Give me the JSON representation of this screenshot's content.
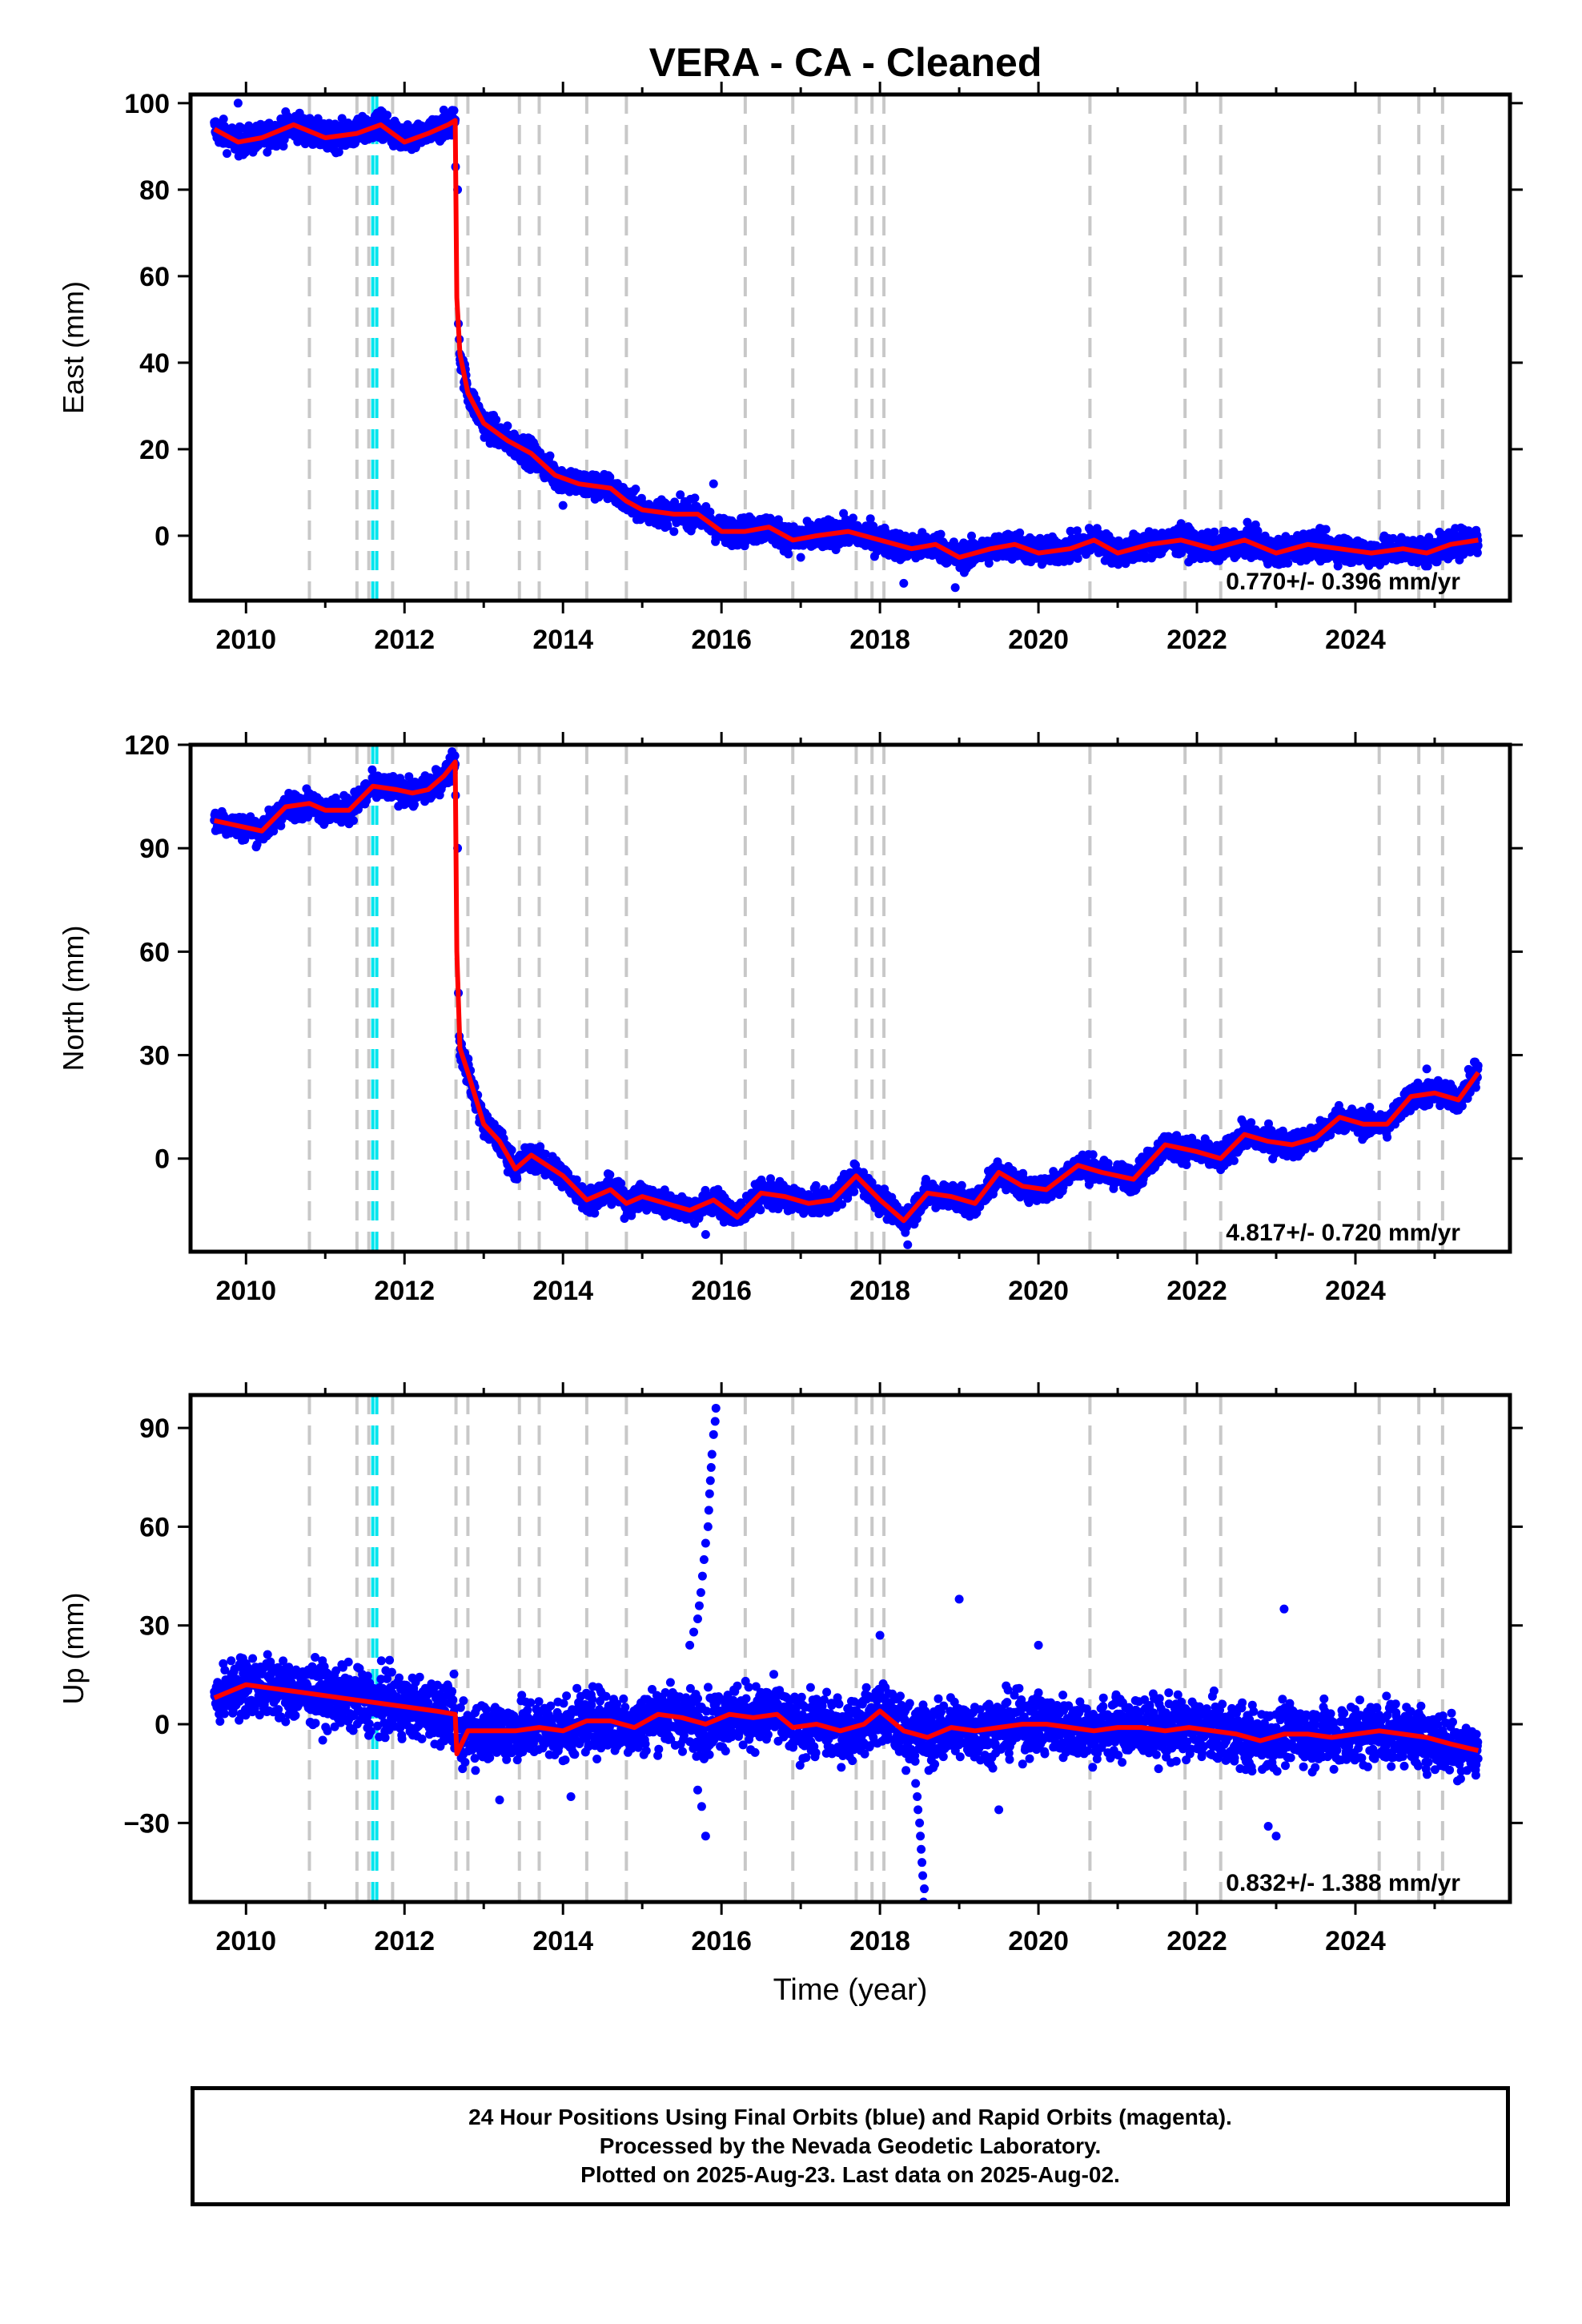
{
  "title": "VERA  - CA - Cleaned",
  "colors": {
    "points": "#0000ff",
    "model": "#ff0000",
    "event_line": "#c8c8c8",
    "equipment_line": "#00e5ee",
    "frame": "#000000"
  },
  "footer": {
    "line1": "24 Hour Positions Using Final Orbits (blue) and Rapid Orbits (magenta).",
    "line2": "Processed by the Nevada Geodetic Laboratory.",
    "line3": "Plotted on 2025-Aug-23. Last data on 2025-Aug-02."
  },
  "chart_data": [
    {
      "type": "scatter",
      "name": "east",
      "ylabel": "East (mm)",
      "xlabel": "",
      "xlim": [
        2009.3,
        2025.95
      ],
      "ylim": [
        -15,
        102
      ],
      "xticks": [
        2010,
        2012,
        2014,
        2016,
        2018,
        2020,
        2022,
        2024
      ],
      "yticks": [
        0,
        20,
        40,
        60,
        80,
        100
      ],
      "rate_label": "0.770+/- 0.396 mm/yr",
      "noise": 2.2,
      "model": [
        [
          2009.6,
          94
        ],
        [
          2009.9,
          91
        ],
        [
          2010.2,
          92
        ],
        [
          2010.6,
          95
        ],
        [
          2011.0,
          92
        ],
        [
          2011.4,
          93
        ],
        [
          2011.7,
          95
        ],
        [
          2012.0,
          91
        ],
        [
          2012.3,
          93
        ],
        [
          2012.55,
          95
        ],
        [
          2012.64,
          96
        ],
        [
          2012.66,
          55
        ],
        [
          2012.7,
          42
        ],
        [
          2012.8,
          33
        ],
        [
          2013.0,
          26
        ],
        [
          2013.3,
          22
        ],
        [
          2013.6,
          19
        ],
        [
          2013.9,
          14
        ],
        [
          2014.2,
          12
        ],
        [
          2014.6,
          11
        ],
        [
          2014.8,
          8
        ],
        [
          2015.0,
          6
        ],
        [
          2015.4,
          5
        ],
        [
          2015.7,
          5
        ],
        [
          2016.0,
          1
        ],
        [
          2016.3,
          1
        ],
        [
          2016.6,
          2
        ],
        [
          2016.9,
          -1
        ],
        [
          2017.2,
          0
        ],
        [
          2017.6,
          1
        ],
        [
          2018.0,
          -1
        ],
        [
          2018.4,
          -3
        ],
        [
          2018.7,
          -2
        ],
        [
          2019.0,
          -5
        ],
        [
          2019.4,
          -3
        ],
        [
          2019.7,
          -2
        ],
        [
          2020.0,
          -4
        ],
        [
          2020.4,
          -3
        ],
        [
          2020.7,
          -1
        ],
        [
          2021.0,
          -4
        ],
        [
          2021.4,
          -2
        ],
        [
          2021.8,
          -1
        ],
        [
          2022.2,
          -3
        ],
        [
          2022.6,
          -1
        ],
        [
          2023.0,
          -4
        ],
        [
          2023.4,
          -2
        ],
        [
          2023.8,
          -3
        ],
        [
          2024.2,
          -4
        ],
        [
          2024.6,
          -3
        ],
        [
          2024.9,
          -4
        ],
        [
          2025.2,
          -2
        ],
        [
          2025.55,
          -1
        ]
      ],
      "event_lines": [
        2010.8,
        2011.4,
        2011.55,
        2011.85,
        2012.65,
        2012.8,
        2013.45,
        2013.7,
        2014.3,
        2014.8,
        2016.3,
        2016.9,
        2017.7,
        2017.9,
        2018.05,
        2020.65,
        2021.85,
        2022.3,
        2024.3,
        2024.8,
        2025.1
      ],
      "equipment_lines": [
        2011.6,
        2011.65
      ],
      "extra_points": [
        [
          2009.9,
          100
        ],
        [
          2012.67,
          80
        ],
        [
          2012.68,
          49
        ],
        [
          2018.3,
          -11
        ],
        [
          2018.95,
          -12
        ],
        [
          2017.0,
          -5
        ],
        [
          2015.9,
          12
        ],
        [
          2014.0,
          7
        ]
      ]
    },
    {
      "type": "scatter",
      "name": "north",
      "ylabel": "North (mm)",
      "xlabel": "",
      "xlim": [
        2009.3,
        2025.95
      ],
      "ylim": [
        -27,
        120
      ],
      "xticks": [
        2010,
        2012,
        2014,
        2016,
        2018,
        2020,
        2022,
        2024
      ],
      "yticks": [
        0,
        30,
        60,
        90,
        120
      ],
      "rate_label": "4.817+/- 0.720 mm/yr",
      "noise": 2.6,
      "model": [
        [
          2009.6,
          98
        ],
        [
          2009.8,
          97
        ],
        [
          2010.0,
          96
        ],
        [
          2010.2,
          95
        ],
        [
          2010.5,
          102
        ],
        [
          2010.8,
          103
        ],
        [
          2011.0,
          101
        ],
        [
          2011.3,
          101
        ],
        [
          2011.6,
          108
        ],
        [
          2011.9,
          107
        ],
        [
          2012.1,
          106
        ],
        [
          2012.3,
          107
        ],
        [
          2012.5,
          111
        ],
        [
          2012.64,
          115
        ],
        [
          2012.66,
          60
        ],
        [
          2012.7,
          32
        ],
        [
          2012.8,
          25
        ],
        [
          2013.0,
          10
        ],
        [
          2013.2,
          5
        ],
        [
          2013.4,
          -3
        ],
        [
          2013.6,
          1
        ],
        [
          2013.8,
          -2
        ],
        [
          2014.0,
          -5
        ],
        [
          2014.3,
          -12
        ],
        [
          2014.6,
          -9
        ],
        [
          2014.8,
          -13
        ],
        [
          2015.0,
          -11
        ],
        [
          2015.3,
          -13
        ],
        [
          2015.6,
          -15
        ],
        [
          2015.9,
          -12
        ],
        [
          2016.2,
          -17
        ],
        [
          2016.5,
          -10
        ],
        [
          2016.8,
          -11
        ],
        [
          2017.1,
          -13
        ],
        [
          2017.4,
          -12
        ],
        [
          2017.7,
          -5
        ],
        [
          2018.0,
          -12
        ],
        [
          2018.3,
          -18
        ],
        [
          2018.6,
          -10
        ],
        [
          2018.9,
          -11
        ],
        [
          2019.2,
          -13
        ],
        [
          2019.5,
          -4
        ],
        [
          2019.8,
          -8
        ],
        [
          2020.1,
          -9
        ],
        [
          2020.5,
          -2
        ],
        [
          2020.8,
          -4
        ],
        [
          2021.2,
          -6
        ],
        [
          2021.6,
          4
        ],
        [
          2022.0,
          2
        ],
        [
          2022.3,
          0
        ],
        [
          2022.6,
          7
        ],
        [
          2022.9,
          5
        ],
        [
          2023.2,
          4
        ],
        [
          2023.5,
          6
        ],
        [
          2023.8,
          12
        ],
        [
          2024.1,
          10
        ],
        [
          2024.4,
          10
        ],
        [
          2024.7,
          18
        ],
        [
          2025.0,
          19
        ],
        [
          2025.3,
          17
        ],
        [
          2025.55,
          25
        ]
      ],
      "event_lines": [
        2010.8,
        2011.4,
        2011.55,
        2011.85,
        2012.65,
        2012.8,
        2013.45,
        2013.7,
        2014.3,
        2014.8,
        2016.3,
        2016.9,
        2017.7,
        2017.9,
        2018.05,
        2020.65,
        2021.85,
        2022.3,
        2024.3,
        2024.8,
        2025.1
      ],
      "equipment_lines": [
        2011.6,
        2011.65
      ],
      "extra_points": [
        [
          2012.6,
          118
        ],
        [
          2012.67,
          90
        ],
        [
          2012.68,
          48
        ],
        [
          2018.35,
          -25
        ],
        [
          2015.8,
          -22
        ],
        [
          2024.9,
          26
        ],
        [
          2025.5,
          28
        ]
      ]
    },
    {
      "type": "scatter",
      "name": "up",
      "ylabel": "Up (mm)",
      "xlabel": "Time (year)",
      "xlim": [
        2009.3,
        2025.95
      ],
      "ylim": [
        -54,
        100
      ],
      "xticks": [
        2010,
        2012,
        2014,
        2016,
        2018,
        2020,
        2022,
        2024
      ],
      "yticks": [
        -30,
        0,
        30,
        60,
        90
      ],
      "rate_label": "0.832+/- 1.388 mm/yr",
      "noise": 6.5,
      "model": [
        [
          2009.6,
          8
        ],
        [
          2009.8,
          10
        ],
        [
          2010.0,
          12
        ],
        [
          2010.3,
          11
        ],
        [
          2010.6,
          10
        ],
        [
          2010.9,
          9
        ],
        [
          2011.2,
          8
        ],
        [
          2011.5,
          7
        ],
        [
          2011.8,
          6
        ],
        [
          2012.1,
          5
        ],
        [
          2012.4,
          4
        ],
        [
          2012.64,
          3
        ],
        [
          2012.66,
          -9
        ],
        [
          2012.8,
          -2
        ],
        [
          2013.1,
          -2
        ],
        [
          2013.4,
          -2
        ],
        [
          2013.7,
          -1
        ],
        [
          2014.0,
          -2
        ],
        [
          2014.3,
          1
        ],
        [
          2014.6,
          1
        ],
        [
          2014.9,
          -1
        ],
        [
          2015.2,
          3
        ],
        [
          2015.5,
          2
        ],
        [
          2015.8,
          0
        ],
        [
          2016.1,
          3
        ],
        [
          2016.4,
          2
        ],
        [
          2016.7,
          3
        ],
        [
          2016.9,
          -1
        ],
        [
          2017.2,
          0
        ],
        [
          2017.5,
          -2
        ],
        [
          2017.8,
          0
        ],
        [
          2018.0,
          4
        ],
        [
          2018.3,
          -2
        ],
        [
          2018.6,
          -4
        ],
        [
          2018.9,
          -1
        ],
        [
          2019.2,
          -2
        ],
        [
          2019.5,
          -1
        ],
        [
          2019.8,
          0
        ],
        [
          2020.1,
          0
        ],
        [
          2020.4,
          -1
        ],
        [
          2020.7,
          -2
        ],
        [
          2021.0,
          -1
        ],
        [
          2021.3,
          -1
        ],
        [
          2021.6,
          -2
        ],
        [
          2021.9,
          -1
        ],
        [
          2022.2,
          -2
        ],
        [
          2022.5,
          -3
        ],
        [
          2022.8,
          -5
        ],
        [
          2023.1,
          -3
        ],
        [
          2023.4,
          -3
        ],
        [
          2023.7,
          -4
        ],
        [
          2024.0,
          -3
        ],
        [
          2024.3,
          -2
        ],
        [
          2024.6,
          -3
        ],
        [
          2024.9,
          -4
        ],
        [
          2025.2,
          -6
        ],
        [
          2025.55,
          -8
        ]
      ],
      "event_lines": [
        2010.8,
        2011.4,
        2011.55,
        2011.85,
        2012.65,
        2012.8,
        2013.45,
        2013.7,
        2014.3,
        2014.8,
        2016.3,
        2016.9,
        2017.7,
        2017.9,
        2018.05,
        2020.65,
        2021.85,
        2022.3,
        2024.3,
        2024.8,
        2025.1
      ],
      "equipment_lines": [
        2011.6,
        2011.65
      ],
      "extra_points": [
        [
          2015.93,
          96
        ],
        [
          2015.92,
          92
        ],
        [
          2015.9,
          88
        ],
        [
          2015.88,
          82
        ],
        [
          2015.87,
          78
        ],
        [
          2015.86,
          74
        ],
        [
          2015.85,
          70
        ],
        [
          2015.84,
          65
        ],
        [
          2015.83,
          60
        ],
        [
          2015.8,
          55
        ],
        [
          2015.78,
          50
        ],
        [
          2015.76,
          45
        ],
        [
          2015.74,
          40
        ],
        [
          2015.72,
          36
        ],
        [
          2015.7,
          32
        ],
        [
          2015.65,
          28
        ],
        [
          2015.6,
          24
        ],
        [
          2015.75,
          -25
        ],
        [
          2015.8,
          -34
        ],
        [
          2015.7,
          -20
        ],
        [
          2018.55,
          -54
        ],
        [
          2018.56,
          -50
        ],
        [
          2018.54,
          -46
        ],
        [
          2018.53,
          -42
        ],
        [
          2018.52,
          -38
        ],
        [
          2018.51,
          -34
        ],
        [
          2018.5,
          -30
        ],
        [
          2018.48,
          -26
        ],
        [
          2018.47,
          -22
        ],
        [
          2018.45,
          -18
        ],
        [
          2018.0,
          27
        ],
        [
          2019.0,
          38
        ],
        [
          2019.5,
          -26
        ],
        [
          2020.0,
          24
        ],
        [
          2023.1,
          35
        ],
        [
          2023.0,
          -34
        ],
        [
          2022.9,
          -31
        ],
        [
          2013.2,
          -23
        ],
        [
          2014.1,
          -22
        ]
      ]
    }
  ]
}
